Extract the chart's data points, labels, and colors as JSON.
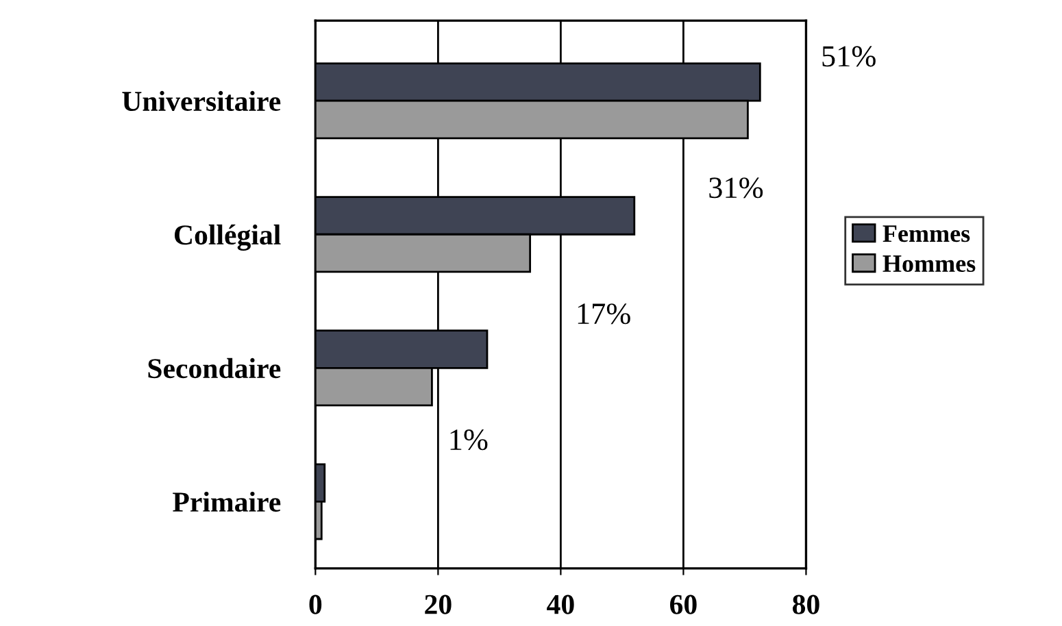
{
  "chart_data": {
    "type": "bar",
    "orientation": "horizontal",
    "categories": [
      "Universitaire",
      "Collégial",
      "Secondaire",
      "Primaire"
    ],
    "series": [
      {
        "name": "Femmes",
        "color": "#3f4454",
        "values": [
          72.5,
          52,
          28,
          1.5
        ]
      },
      {
        "name": "Hommes",
        "color": "#9a9a9a",
        "values": [
          70.5,
          35,
          19,
          1
        ]
      }
    ],
    "xlim": [
      0,
      80
    ],
    "xticks": [
      0,
      20,
      40,
      60,
      80
    ],
    "grid": "x",
    "legend": "right",
    "annotations": [
      "51%",
      "31%",
      "17%",
      "1%"
    ]
  }
}
